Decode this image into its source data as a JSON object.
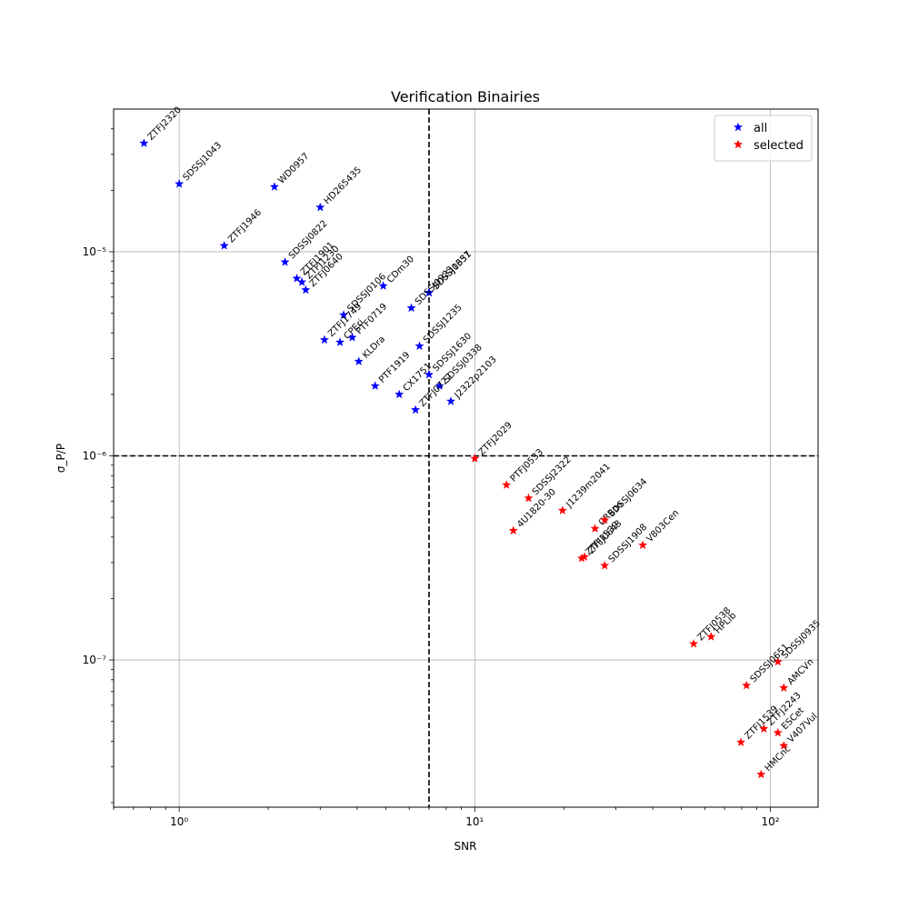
{
  "chart_data": {
    "type": "scatter",
    "title": "Verification Binairies",
    "xlabel": "SNR",
    "ylabel": "σ_P/P",
    "xscale": "log",
    "yscale": "log",
    "xlim": [
      0.6,
      145
    ],
    "ylim": [
      1.9e-08,
      5e-05
    ],
    "grid": true,
    "legend_position": "upper right",
    "x_tick_labels": [
      {
        "value": 1,
        "label": "10⁰"
      },
      {
        "value": 10,
        "label": "10¹"
      },
      {
        "value": 100,
        "label": "10²"
      }
    ],
    "y_tick_labels": [
      {
        "value": 1e-07,
        "label": "10⁻⁷"
      },
      {
        "value": 1e-06,
        "label": "10⁻⁶"
      },
      {
        "value": 1e-05,
        "label": "10⁻⁵"
      }
    ],
    "reference_lines": {
      "x": 7,
      "y": 1e-06
    },
    "series": [
      {
        "name": "all",
        "color": "#0000ff",
        "marker": "star",
        "points": [
          {
            "label": "ZTFJ2320",
            "x": 0.76,
            "y": 3.4e-05
          },
          {
            "label": "SDSSJ1043",
            "x": 1.0,
            "y": 2.15e-05
          },
          {
            "label": "WD0957",
            "x": 2.1,
            "y": 2.08e-05
          },
          {
            "label": "HD265435",
            "x": 3.0,
            "y": 1.65e-05
          },
          {
            "label": "ZTFJ1946",
            "x": 1.42,
            "y": 1.07e-05
          },
          {
            "label": "SDSSJ0822",
            "x": 2.28,
            "y": 8.9e-06
          },
          {
            "label": "ZTFJ1901",
            "x": 2.5,
            "y": 7.4e-06
          },
          {
            "label": "ZTFJ1230",
            "x": 2.6,
            "y": 7.1e-06
          },
          {
            "label": "ZTFJ0640",
            "x": 2.68,
            "y": 6.5e-06
          },
          {
            "label": "CDm30",
            "x": 4.9,
            "y": 6.8e-06
          },
          {
            "label": "SDSSJ0651",
            "x": 7.0,
            "y": 6.3e-06
          },
          {
            "label": "SDSSJ1337",
            "x": 7.0,
            "y": 6.3e-06
          },
          {
            "label": "SDSSJ0106",
            "x": 3.6,
            "y": 4.9e-06
          },
          {
            "label": "SDSSJ0923",
            "x": 6.1,
            "y": 5.3e-06
          },
          {
            "label": "ZTFJ1749",
            "x": 3.1,
            "y": 3.7e-06
          },
          {
            "label": "CPEri",
            "x": 3.5,
            "y": 3.6e-06
          },
          {
            "label": "PTF0719",
            "x": 3.85,
            "y": 3.8e-06
          },
          {
            "label": "SDSSJ1235",
            "x": 6.5,
            "y": 3.45e-06
          },
          {
            "label": "KLDra",
            "x": 4.05,
            "y": 2.9e-06
          },
          {
            "label": "SDSSJ1630",
            "x": 7.0,
            "y": 2.5e-06
          },
          {
            "label": "PTF1919",
            "x": 4.6,
            "y": 2.2e-06
          },
          {
            "label": "CX1751",
            "x": 5.55,
            "y": 2e-06
          },
          {
            "label": "SDSSJ0338",
            "x": 7.6,
            "y": 2.2e-06
          },
          {
            "label": "ZTFJ0722",
            "x": 6.3,
            "y": 1.68e-06
          },
          {
            "label": "J2322p2103",
            "x": 8.3,
            "y": 1.85e-06
          }
        ]
      },
      {
        "name": "selected",
        "color": "#ff0000",
        "marker": "star",
        "points": [
          {
            "label": "ZTFJ2029",
            "x": 10.0,
            "y": 9.7e-07
          },
          {
            "label": "PTFJ0533",
            "x": 12.8,
            "y": 7.2e-07
          },
          {
            "label": "SDSSJ2322",
            "x": 15.2,
            "y": 6.2e-07
          },
          {
            "label": "J1239m2041",
            "x": 19.8,
            "y": 5.4e-07
          },
          {
            "label": "4U1820-30",
            "x": 13.5,
            "y": 4.3e-07
          },
          {
            "label": "CRBoo",
            "x": 25.5,
            "y": 4.4e-07
          },
          {
            "label": "SDSSJ0634",
            "x": 27.5,
            "y": 4.85e-07
          },
          {
            "label": "ZTFJ1539",
            "x": 23.0,
            "y": 3.15e-07
          },
          {
            "label": "SDSSJ1908",
            "x": 27.5,
            "y": 2.9e-07
          },
          {
            "label": "ZTFJ0643",
            "x": 23.5,
            "y": 3.2e-07
          },
          {
            "label": "V803Cen",
            "x": 37.0,
            "y": 3.65e-07
          },
          {
            "label": "ZTFJ0538",
            "x": 55.0,
            "y": 1.2e-07
          },
          {
            "label": "HPLib",
            "x": 63.0,
            "y": 1.3e-07
          },
          {
            "label": "SDSSJ0935",
            "x": 106.0,
            "y": 9.8e-08
          },
          {
            "label": "SDSSJ0651",
            "x": 83.0,
            "y": 7.5e-08
          },
          {
            "label": "AMCVn",
            "x": 111.0,
            "y": 7.3e-08
          },
          {
            "label": "ZTFJ1539",
            "x": 79.5,
            "y": 3.95e-08
          },
          {
            "label": "ZTFJ2243",
            "x": 95.0,
            "y": 4.6e-08
          },
          {
            "label": "ESCet",
            "x": 106.0,
            "y": 4.4e-08
          },
          {
            "label": "V407Vul",
            "x": 111.0,
            "y": 3.8e-08
          },
          {
            "label": "HMCnc",
            "x": 93.0,
            "y": 2.75e-08
          }
        ]
      }
    ]
  }
}
